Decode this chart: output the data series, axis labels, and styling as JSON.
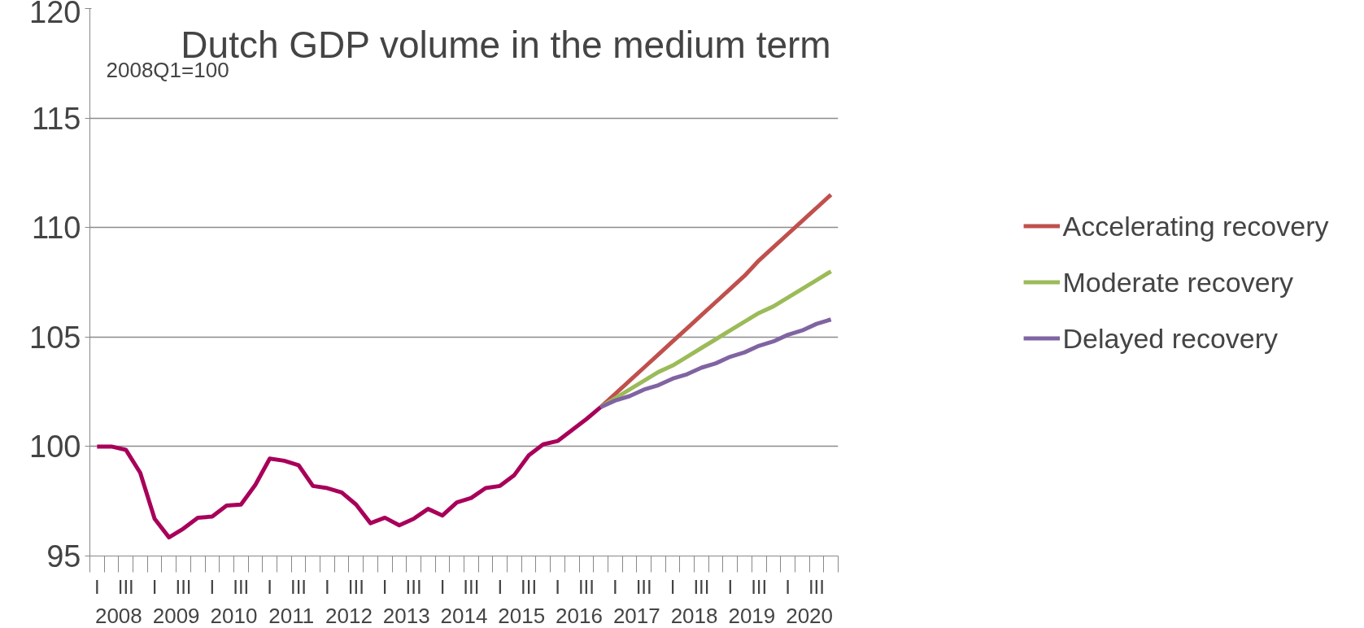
{
  "chart_data": {
    "type": "line",
    "title": "Dutch GDP volume in the medium term",
    "annotations": [
      "2008Q1=100",
      "2008",
      "2009",
      "2010",
      "2011",
      "2012",
      "2013",
      "2014",
      "2015",
      "2016",
      "2017",
      "2018",
      "2019",
      "2020"
    ],
    "categories": [
      "I",
      null,
      "III",
      null,
      "I",
      null,
      "III",
      null,
      "I",
      null,
      "III",
      null,
      "I",
      null,
      "III",
      null,
      "I",
      null,
      "III",
      null,
      "I",
      null,
      "III",
      null,
      "I",
      null,
      "III",
      null,
      "I",
      null,
      "III",
      null,
      "I",
      null,
      "III",
      null,
      "I",
      null,
      "III",
      null,
      "I",
      null,
      "III",
      null,
      "I",
      null,
      "III",
      null,
      "I",
      null,
      "III",
      null
    ],
    "series": [
      {
        "color": "#a8005a",
        "values": [
          100.0,
          100.0,
          99.85,
          98.8,
          96.7,
          95.85,
          96.25,
          96.75,
          96.8,
          97.3,
          97.35,
          98.25,
          99.45,
          99.35,
          99.15,
          98.2,
          98.1,
          97.9,
          97.35,
          96.5,
          96.75,
          96.4,
          96.7,
          97.15,
          96.85,
          97.45,
          97.65,
          98.1,
          98.2,
          98.7,
          99.6,
          100.1,
          100.25,
          100.75,
          101.25,
          101.8,
          null,
          null,
          null,
          null,
          null,
          null,
          null,
          null,
          null,
          null,
          null,
          null,
          null,
          null,
          null,
          null
        ]
      },
      {
        "name": "Accelerating recovery",
        "color": "#c0504d",
        "values": [
          null,
          null,
          null,
          null,
          null,
          null,
          null,
          null,
          null,
          null,
          null,
          null,
          null,
          null,
          null,
          null,
          null,
          null,
          null,
          null,
          null,
          null,
          null,
          null,
          null,
          null,
          null,
          null,
          null,
          null,
          null,
          null,
          null,
          null,
          null,
          101.8,
          102.4,
          103.0,
          103.6,
          104.2,
          104.8,
          105.4,
          106.0,
          106.6,
          107.2,
          107.8,
          108.5,
          109.1,
          109.7,
          110.3,
          110.9,
          111.5
        ]
      },
      {
        "name": "Moderate recovery",
        "color": "#9bbb59",
        "values": [
          null,
          null,
          null,
          null,
          null,
          null,
          null,
          null,
          null,
          null,
          null,
          null,
          null,
          null,
          null,
          null,
          null,
          null,
          null,
          null,
          null,
          null,
          null,
          null,
          null,
          null,
          null,
          null,
          null,
          null,
          null,
          null,
          null,
          null,
          null,
          101.8,
          102.2,
          102.6,
          103.0,
          103.4,
          103.7,
          104.1,
          104.5,
          104.9,
          105.3,
          105.7,
          106.1,
          106.4,
          106.8,
          107.2,
          107.6,
          108.0
        ]
      },
      {
        "name": "Delayed recovery",
        "color": "#8064a2",
        "values": [
          null,
          null,
          null,
          null,
          null,
          null,
          null,
          null,
          null,
          null,
          null,
          null,
          null,
          null,
          null,
          null,
          null,
          null,
          null,
          null,
          null,
          null,
          null,
          null,
          null,
          null,
          null,
          null,
          null,
          null,
          null,
          null,
          null,
          null,
          null,
          101.8,
          102.1,
          102.3,
          102.6,
          102.8,
          103.1,
          103.3,
          103.6,
          103.8,
          104.1,
          104.3,
          104.6,
          104.8,
          105.1,
          105.3,
          105.6,
          105.8
        ]
      }
    ],
    "ylim": [
      95,
      120
    ],
    "yticks": [
      95,
      100,
      105,
      110,
      115,
      120
    ],
    "grid": "y",
    "legend": "right",
    "marker": "none",
    "line_style": "solid"
  }
}
